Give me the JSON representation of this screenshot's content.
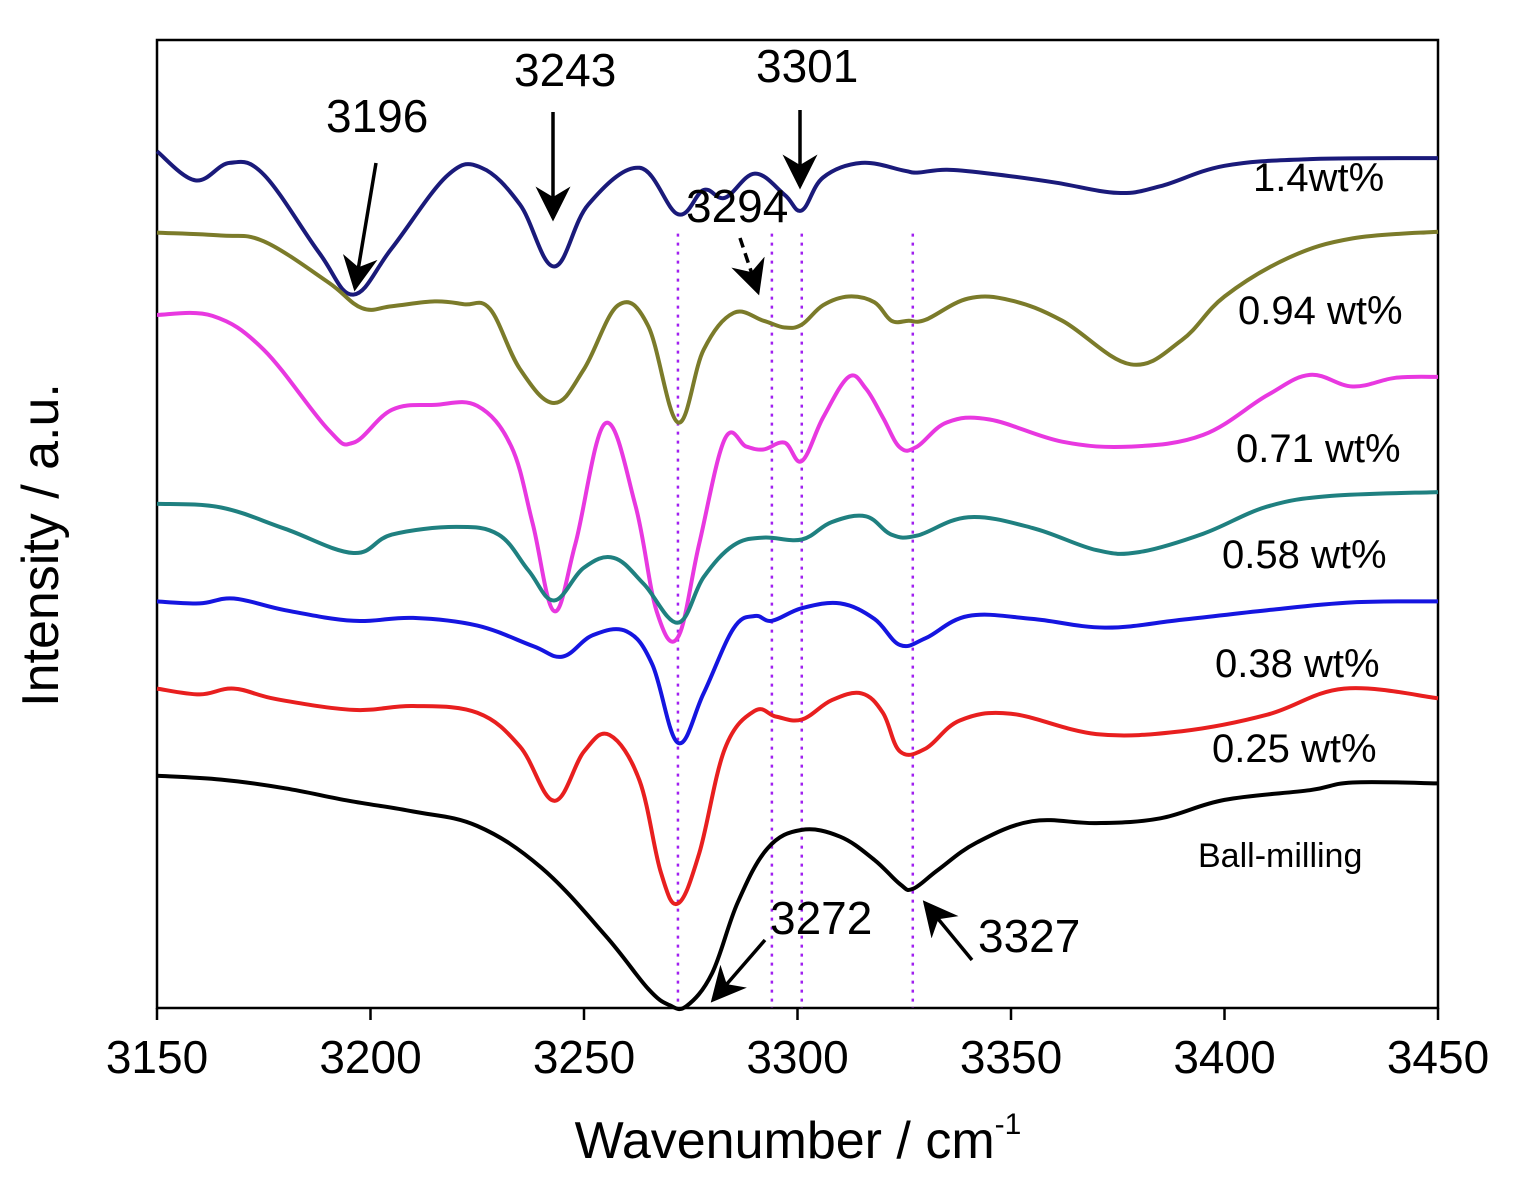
{
  "chart_data": {
    "type": "line",
    "title": "",
    "xlabel": "Wavenumber / cm",
    "xlabel_superscript": "-1",
    "ylabel": "Intensity / a.u.",
    "xlim": [
      3150,
      3450
    ],
    "xticks": [
      3150,
      3200,
      3250,
      3300,
      3350,
      3400,
      3450
    ],
    "xtick_labels": [
      "3150",
      "3200",
      "3250",
      "3300",
      "3350",
      "3400",
      "3450"
    ],
    "yticks_visible": false,
    "ylim": [
      0,
      100
    ],
    "grid": false,
    "reference_lines": [
      3272,
      3294,
      3301,
      3327
    ],
    "series": [
      {
        "name": "1.4wt%",
        "label": "1.4wt%",
        "color": "#1a1a7a",
        "points": [
          [
            3150,
            88.5
          ],
          [
            3159,
            85.5
          ],
          [
            3167,
            87.3
          ],
          [
            3175,
            86.1
          ],
          [
            3188,
            78
          ],
          [
            3196,
            73.7
          ],
          [
            3205,
            78.5
          ],
          [
            3218,
            86
          ],
          [
            3226,
            86.8
          ],
          [
            3235,
            83
          ],
          [
            3243,
            76.6
          ],
          [
            3251,
            83
          ],
          [
            3263,
            86.8
          ],
          [
            3272,
            82
          ],
          [
            3278,
            84.5
          ],
          [
            3283,
            83.7
          ],
          [
            3290,
            86.2
          ],
          [
            3297,
            84
          ],
          [
            3301,
            82.4
          ],
          [
            3306,
            85.8
          ],
          [
            3315,
            87.3
          ],
          [
            3325,
            86.5
          ],
          [
            3328,
            86.3
          ],
          [
            3335,
            86.6
          ],
          [
            3345,
            86.2
          ],
          [
            3360,
            85.3
          ],
          [
            3375,
            84.2
          ],
          [
            3385,
            84.9
          ],
          [
            3400,
            87
          ],
          [
            3420,
            87.7
          ],
          [
            3450,
            87.8
          ]
        ]
      },
      {
        "name": "0.94 wt%",
        "label": "0.94 wt%",
        "color": "#7b7b2a",
        "points": [
          [
            3150,
            80.1
          ],
          [
            3165,
            79.8
          ],
          [
            3175,
            79.2
          ],
          [
            3190,
            75
          ],
          [
            3198,
            72.3
          ],
          [
            3205,
            72.5
          ],
          [
            3215,
            73
          ],
          [
            3222,
            72.7
          ],
          [
            3228,
            72.2
          ],
          [
            3235,
            66
          ],
          [
            3243,
            62.5
          ],
          [
            3250,
            66
          ],
          [
            3258,
            72.6
          ],
          [
            3265,
            70.5
          ],
          [
            3272,
            60.5
          ],
          [
            3278,
            68
          ],
          [
            3285,
            71.8
          ],
          [
            3292,
            71
          ],
          [
            3297,
            70.3
          ],
          [
            3301,
            70.6
          ],
          [
            3306,
            72.6
          ],
          [
            3312,
            73.5
          ],
          [
            3318,
            72.9
          ],
          [
            3322,
            71
          ],
          [
            3326,
            71
          ],
          [
            3330,
            71.1
          ],
          [
            3340,
            73.3
          ],
          [
            3350,
            73.1
          ],
          [
            3362,
            71
          ],
          [
            3378,
            66.5
          ],
          [
            3390,
            69
          ],
          [
            3400,
            73.5
          ],
          [
            3415,
            77.5
          ],
          [
            3430,
            79.5
          ],
          [
            3450,
            80.2
          ]
        ]
      },
      {
        "name": "0.71 wt%",
        "label": "0.71 wt%",
        "color": "#e838e0",
        "points": [
          [
            3150,
            71.6
          ],
          [
            3163,
            71.5
          ],
          [
            3175,
            68
          ],
          [
            3190,
            59.8
          ],
          [
            3196,
            58.4
          ],
          [
            3205,
            61.8
          ],
          [
            3215,
            62.3
          ],
          [
            3225,
            62.2
          ],
          [
            3233,
            58
          ],
          [
            3238,
            50
          ],
          [
            3243,
            41
          ],
          [
            3248,
            48
          ],
          [
            3255,
            60.4
          ],
          [
            3262,
            52
          ],
          [
            3267,
            41
          ],
          [
            3272,
            38.3
          ],
          [
            3277,
            48
          ],
          [
            3283,
            58.8
          ],
          [
            3288,
            58
          ],
          [
            3292,
            57.7
          ],
          [
            3297,
            58.4
          ],
          [
            3301,
            56.5
          ],
          [
            3306,
            61
          ],
          [
            3312,
            65.2
          ],
          [
            3316,
            64
          ],
          [
            3320,
            61
          ],
          [
            3324,
            57.9
          ],
          [
            3328,
            58
          ],
          [
            3335,
            60.5
          ],
          [
            3345,
            60.8
          ],
          [
            3362,
            58.5
          ],
          [
            3378,
            58
          ],
          [
            3395,
            59.2
          ],
          [
            3410,
            63.3
          ],
          [
            3420,
            65.4
          ],
          [
            3430,
            64.2
          ],
          [
            3440,
            65.1
          ],
          [
            3450,
            65.2
          ]
        ]
      },
      {
        "name": "0.58 wt%",
        "label": "0.58 wt%",
        "color": "#1f8080",
        "points": [
          [
            3150,
            52.1
          ],
          [
            3165,
            51.7
          ],
          [
            3180,
            49.5
          ],
          [
            3196,
            47
          ],
          [
            3205,
            48.9
          ],
          [
            3220,
            49.7
          ],
          [
            3230,
            48.9
          ],
          [
            3237,
            45.2
          ],
          [
            3243,
            42.1
          ],
          [
            3250,
            45.5
          ],
          [
            3257,
            46.5
          ],
          [
            3264,
            43.8
          ],
          [
            3272,
            39.8
          ],
          [
            3278,
            44.5
          ],
          [
            3285,
            47.8
          ],
          [
            3292,
            48.6
          ],
          [
            3301,
            48.4
          ],
          [
            3308,
            50.2
          ],
          [
            3316,
            50.8
          ],
          [
            3322,
            48.9
          ],
          [
            3328,
            48.8
          ],
          [
            3340,
            50.7
          ],
          [
            3355,
            49.6
          ],
          [
            3370,
            47.3
          ],
          [
            3380,
            47.1
          ],
          [
            3395,
            49
          ],
          [
            3410,
            51.8
          ],
          [
            3425,
            52.9
          ],
          [
            3450,
            53.3
          ]
        ]
      },
      {
        "name": "0.38 wt%",
        "label": "0.38 wt%",
        "color": "#1515e0",
        "points": [
          [
            3150,
            42
          ],
          [
            3160,
            41.8
          ],
          [
            3168,
            42.3
          ],
          [
            3180,
            41.1
          ],
          [
            3196,
            40
          ],
          [
            3210,
            40.3
          ],
          [
            3225,
            39.5
          ],
          [
            3238,
            37.4
          ],
          [
            3245,
            36.3
          ],
          [
            3252,
            38.5
          ],
          [
            3260,
            38.9
          ],
          [
            3266,
            35.5
          ],
          [
            3272,
            27.4
          ],
          [
            3278,
            32.5
          ],
          [
            3285,
            39.2
          ],
          [
            3290,
            40.5
          ],
          [
            3294,
            40
          ],
          [
            3301,
            41.3
          ],
          [
            3310,
            41.8
          ],
          [
            3318,
            40.2
          ],
          [
            3324,
            37.5
          ],
          [
            3330,
            38.2
          ],
          [
            3340,
            40.5
          ],
          [
            3355,
            40.2
          ],
          [
            3372,
            39.3
          ],
          [
            3390,
            40.1
          ],
          [
            3410,
            41.1
          ],
          [
            3430,
            41.9
          ],
          [
            3450,
            42
          ]
        ]
      },
      {
        "name": "0.25 wt%",
        "label": "0.25 wt%",
        "color": "#e81f1f",
        "points": [
          [
            3150,
            33
          ],
          [
            3160,
            32.4
          ],
          [
            3168,
            33
          ],
          [
            3178,
            31.9
          ],
          [
            3196,
            30.8
          ],
          [
            3210,
            31.2
          ],
          [
            3225,
            30.5
          ],
          [
            3235,
            27
          ],
          [
            3243,
            21.4
          ],
          [
            3250,
            26.5
          ],
          [
            3256,
            28.2
          ],
          [
            3263,
            23.5
          ],
          [
            3268,
            14
          ],
          [
            3272,
            10.8
          ],
          [
            3277,
            16
          ],
          [
            3283,
            26.8
          ],
          [
            3290,
            30.7
          ],
          [
            3295,
            30.1
          ],
          [
            3301,
            29.8
          ],
          [
            3308,
            31.8
          ],
          [
            3315,
            32.5
          ],
          [
            3320,
            30.5
          ],
          [
            3324,
            26.5
          ],
          [
            3330,
            26.8
          ],
          [
            3338,
            29.7
          ],
          [
            3350,
            30.4
          ],
          [
            3370,
            28.3
          ],
          [
            3390,
            28.6
          ],
          [
            3410,
            30.3
          ],
          [
            3428,
            33
          ],
          [
            3450,
            32
          ]
        ]
      },
      {
        "name": "Ball-milling",
        "label": "Ball-milling",
        "color": "#000000",
        "points": [
          [
            3150,
            24
          ],
          [
            3165,
            23.6
          ],
          [
            3180,
            22.7
          ],
          [
            3195,
            21.4
          ],
          [
            3210,
            20.3
          ],
          [
            3225,
            18.8
          ],
          [
            3240,
            14.5
          ],
          [
            3255,
            7.5
          ],
          [
            3265,
            2
          ],
          [
            3270,
            0.3
          ],
          [
            3274,
            0.2
          ],
          [
            3280,
            3.6
          ],
          [
            3286,
            10.9
          ],
          [
            3293,
            16.5
          ],
          [
            3301,
            18.4
          ],
          [
            3310,
            17.7
          ],
          [
            3318,
            15.3
          ],
          [
            3324,
            12.8
          ],
          [
            3327,
            12.3
          ],
          [
            3333,
            14.3
          ],
          [
            3342,
            17.1
          ],
          [
            3355,
            19.3
          ],
          [
            3370,
            19.1
          ],
          [
            3385,
            19.6
          ],
          [
            3400,
            21.5
          ],
          [
            3420,
            22.5
          ],
          [
            3430,
            23.3
          ],
          [
            3450,
            23.2
          ]
        ]
      }
    ],
    "annotations": [
      {
        "text": "3196",
        "x": 3196,
        "style": "solid"
      },
      {
        "text": "3243",
        "x": 3243,
        "style": "solid"
      },
      {
        "text": "3301",
        "x": 3301,
        "style": "solid"
      },
      {
        "text": "3294",
        "x": 3294,
        "style": "dashed"
      },
      {
        "text": "3272",
        "x": 3272,
        "style": "solid"
      },
      {
        "text": "3327",
        "x": 3327,
        "style": "solid"
      }
    ]
  }
}
